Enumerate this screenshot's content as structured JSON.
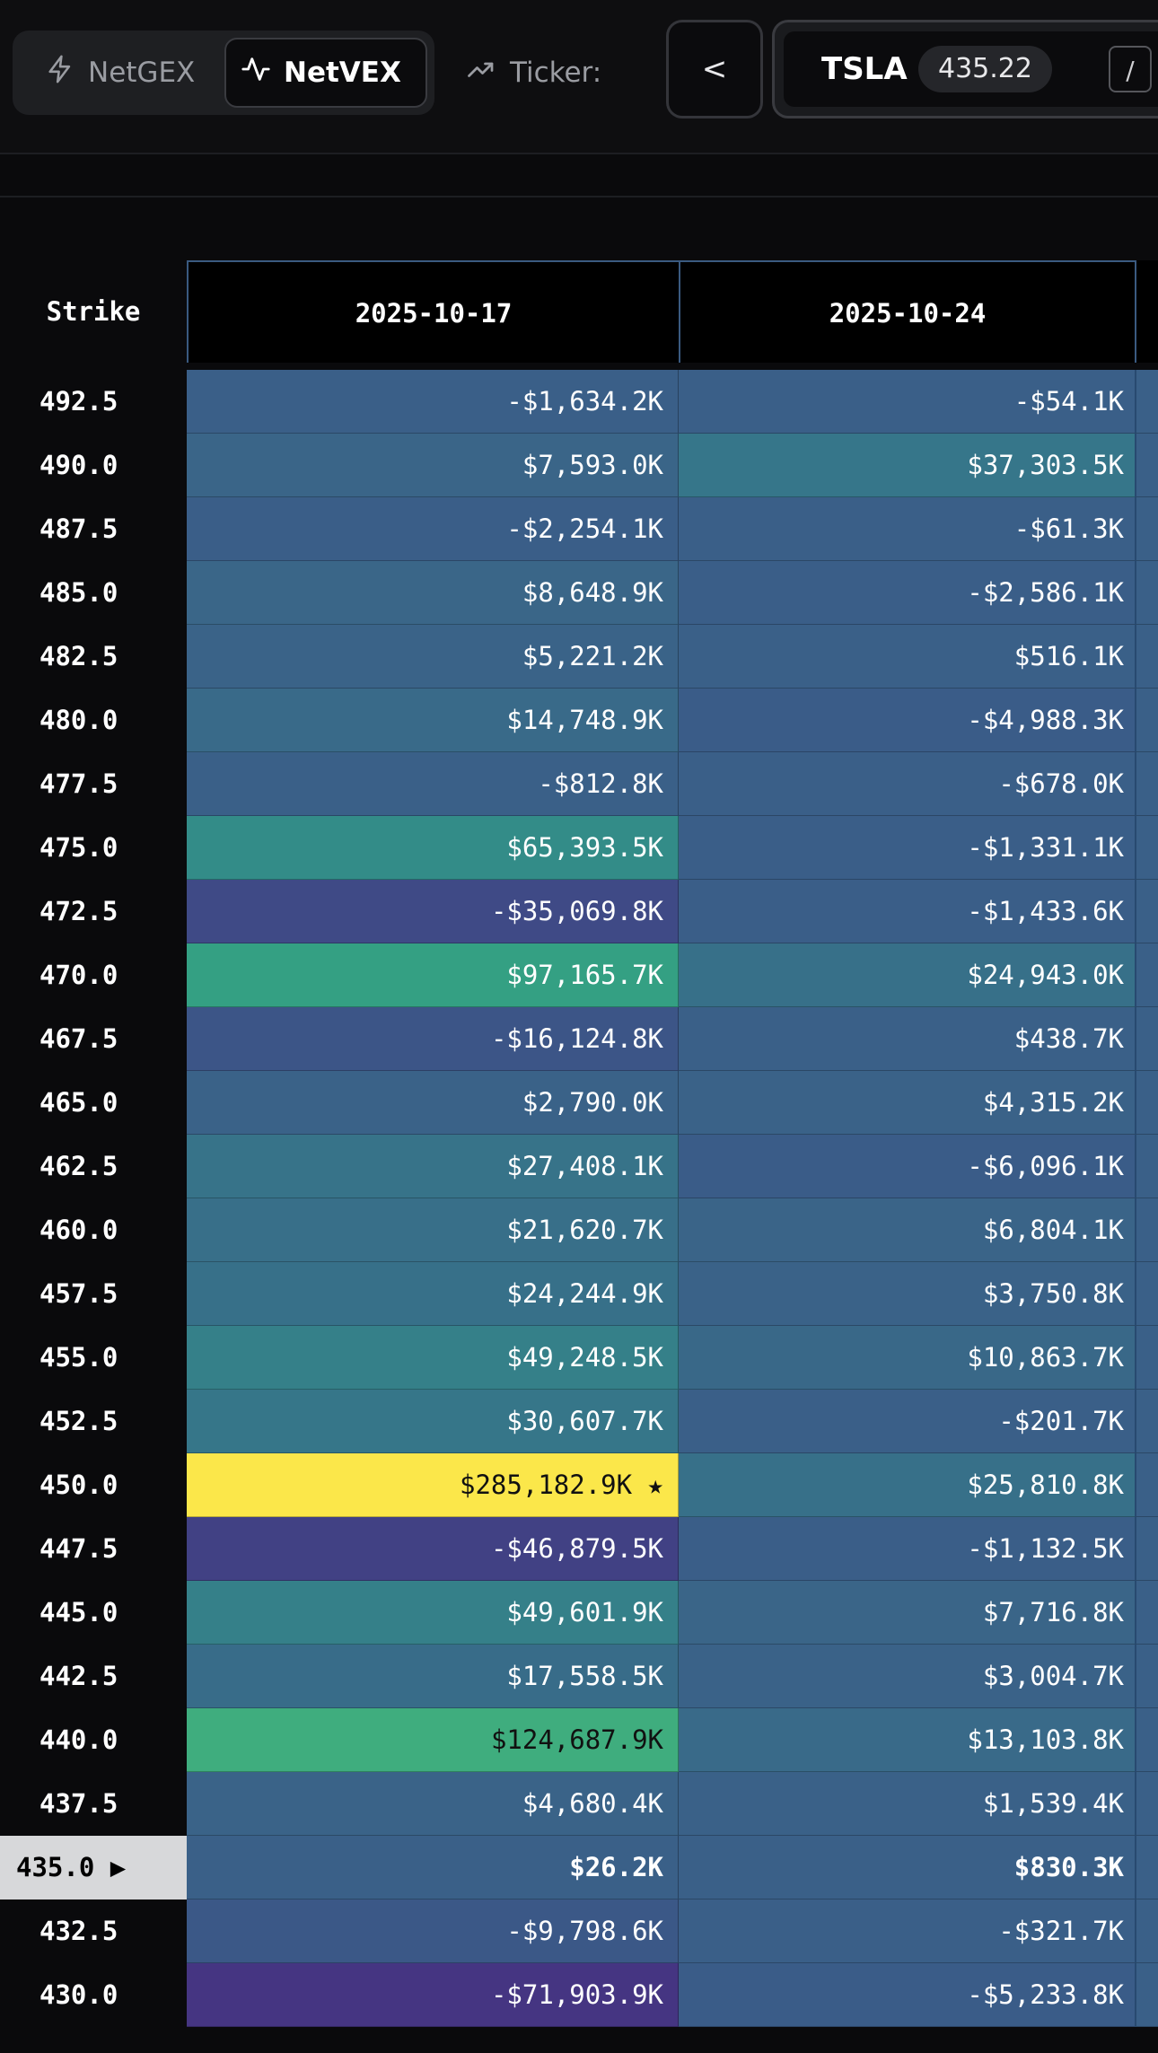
{
  "toolbar": {
    "netgex_label": "NetGEX",
    "netvex_label": "NetVEX",
    "ticker_label": "Ticker:",
    "prev_icon": "chevron-left",
    "prev_glyph": "<",
    "ticker_symbol": "TSLA",
    "ticker_price": "435.22",
    "shortcut_key": "/"
  },
  "table": {
    "headers": [
      "Strike",
      "2025-10-17",
      "2025-10-24"
    ],
    "current_strike_marker": "▶",
    "rows": [
      {
        "strike": "492.5",
        "v1": "-$1,634.2K",
        "v2": "-$54.1K",
        "c1": "#3a5f88",
        "c2": "#3a5f88"
      },
      {
        "strike": "490.0",
        "v1": "$7,593.0K",
        "v2": "$37,303.5K",
        "c1": "#3a6588",
        "c2": "#36768a"
      },
      {
        "strike": "487.5",
        "v1": "-$2,254.1K",
        "v2": "-$61.3K",
        "c1": "#3a5e88",
        "c2": "#3a5f88"
      },
      {
        "strike": "485.0",
        "v1": "$8,648.9K",
        "v2": "-$2,586.1K",
        "c1": "#3a6688",
        "c2": "#3a5e88"
      },
      {
        "strike": "482.5",
        "v1": "$5,221.2K",
        "v2": "$516.1K",
        "c1": "#3a6388",
        "c2": "#3a6088"
      },
      {
        "strike": "480.0",
        "v1": "$14,748.9K",
        "v2": "-$4,988.3K",
        "c1": "#396a89",
        "c2": "#3a5c88"
      },
      {
        "strike": "477.5",
        "v1": "-$812.8K",
        "v2": "-$678.0K",
        "c1": "#3a6088",
        "c2": "#3a5f88"
      },
      {
        "strike": "475.0",
        "v1": "$65,393.5K",
        "v2": "-$1,331.1K",
        "c1": "#338c88",
        "c2": "#3a5e88"
      },
      {
        "strike": "472.5",
        "v1": "-$35,069.8K",
        "v2": "-$1,433.6K",
        "c1": "#3f4a86",
        "c2": "#3a5e88"
      },
      {
        "strike": "470.0",
        "v1": "$97,165.7K",
        "v2": "$24,943.0K",
        "c1": "#34a083",
        "c2": "#377089"
      },
      {
        "strike": "467.5",
        "v1": "-$16,124.8K",
        "v2": "$438.7K",
        "c1": "#3c5587",
        "c2": "#3a6088"
      },
      {
        "strike": "465.0",
        "v1": "$2,790.0K",
        "v2": "$4,315.2K",
        "c1": "#3a6288",
        "c2": "#3a6288"
      },
      {
        "strike": "462.5",
        "v1": "$27,408.1K",
        "v2": "-$6,096.1K",
        "c1": "#377389",
        "c2": "#3a5c88"
      },
      {
        "strike": "460.0",
        "v1": "$21,620.7K",
        "v2": "$6,804.1K",
        "c1": "#386f89",
        "c2": "#3a6488"
      },
      {
        "strike": "457.5",
        "v1": "$24,244.9K",
        "v2": "$3,750.8K",
        "c1": "#377089",
        "c2": "#3a6288"
      },
      {
        "strike": "455.0",
        "v1": "$49,248.5K",
        "v2": "$10,863.7K",
        "c1": "#358089",
        "c2": "#396888"
      },
      {
        "strike": "452.5",
        "v1": "$30,607.7K",
        "v2": "-$201.7K",
        "c1": "#367689",
        "c2": "#3a5f88"
      },
      {
        "strike": "450.0",
        "v1": "$285,182.9K ★",
        "v2": "$25,810.8K",
        "c1": "#fbe74a",
        "c2": "#377089",
        "t1": "dark"
      },
      {
        "strike": "447.5",
        "v1": "-$46,879.5K",
        "v2": "-$1,132.5K",
        "c1": "#414184",
        "c2": "#3a5e88"
      },
      {
        "strike": "445.0",
        "v1": "$49,601.9K",
        "v2": "$7,716.8K",
        "c1": "#358089",
        "c2": "#3a6588"
      },
      {
        "strike": "442.5",
        "v1": "$17,558.5K",
        "v2": "$3,004.7K",
        "c1": "#386c89",
        "c2": "#3a6288"
      },
      {
        "strike": "440.0",
        "v1": "$124,687.9K",
        "v2": "$13,103.8K",
        "c1": "#3fad7e",
        "c2": "#396a89",
        "t1": "dark"
      },
      {
        "strike": "437.5",
        "v1": "$4,680.4K",
        "v2": "$1,539.4K",
        "c1": "#3a6388",
        "c2": "#3a6188"
      },
      {
        "strike": "435.0",
        "v1": "$26.2K",
        "v2": "$830.3K",
        "c1": "#3a6088",
        "c2": "#3a6088",
        "current": true,
        "bold": true
      },
      {
        "strike": "432.5",
        "v1": "-$9,798.6K",
        "v2": "-$321.7K",
        "c1": "#3b5887",
        "c2": "#3a5f88"
      },
      {
        "strike": "430.0",
        "v1": "-$71,903.9K",
        "v2": "-$5,233.8K",
        "c1": "#453582",
        "c2": "#3a5c88"
      }
    ]
  },
  "colors": {
    "background": "#0a0a0c",
    "header_border": "#3a5a80",
    "max_highlight": "#fbe74a",
    "current_strike_bg": "#d7d8da"
  }
}
